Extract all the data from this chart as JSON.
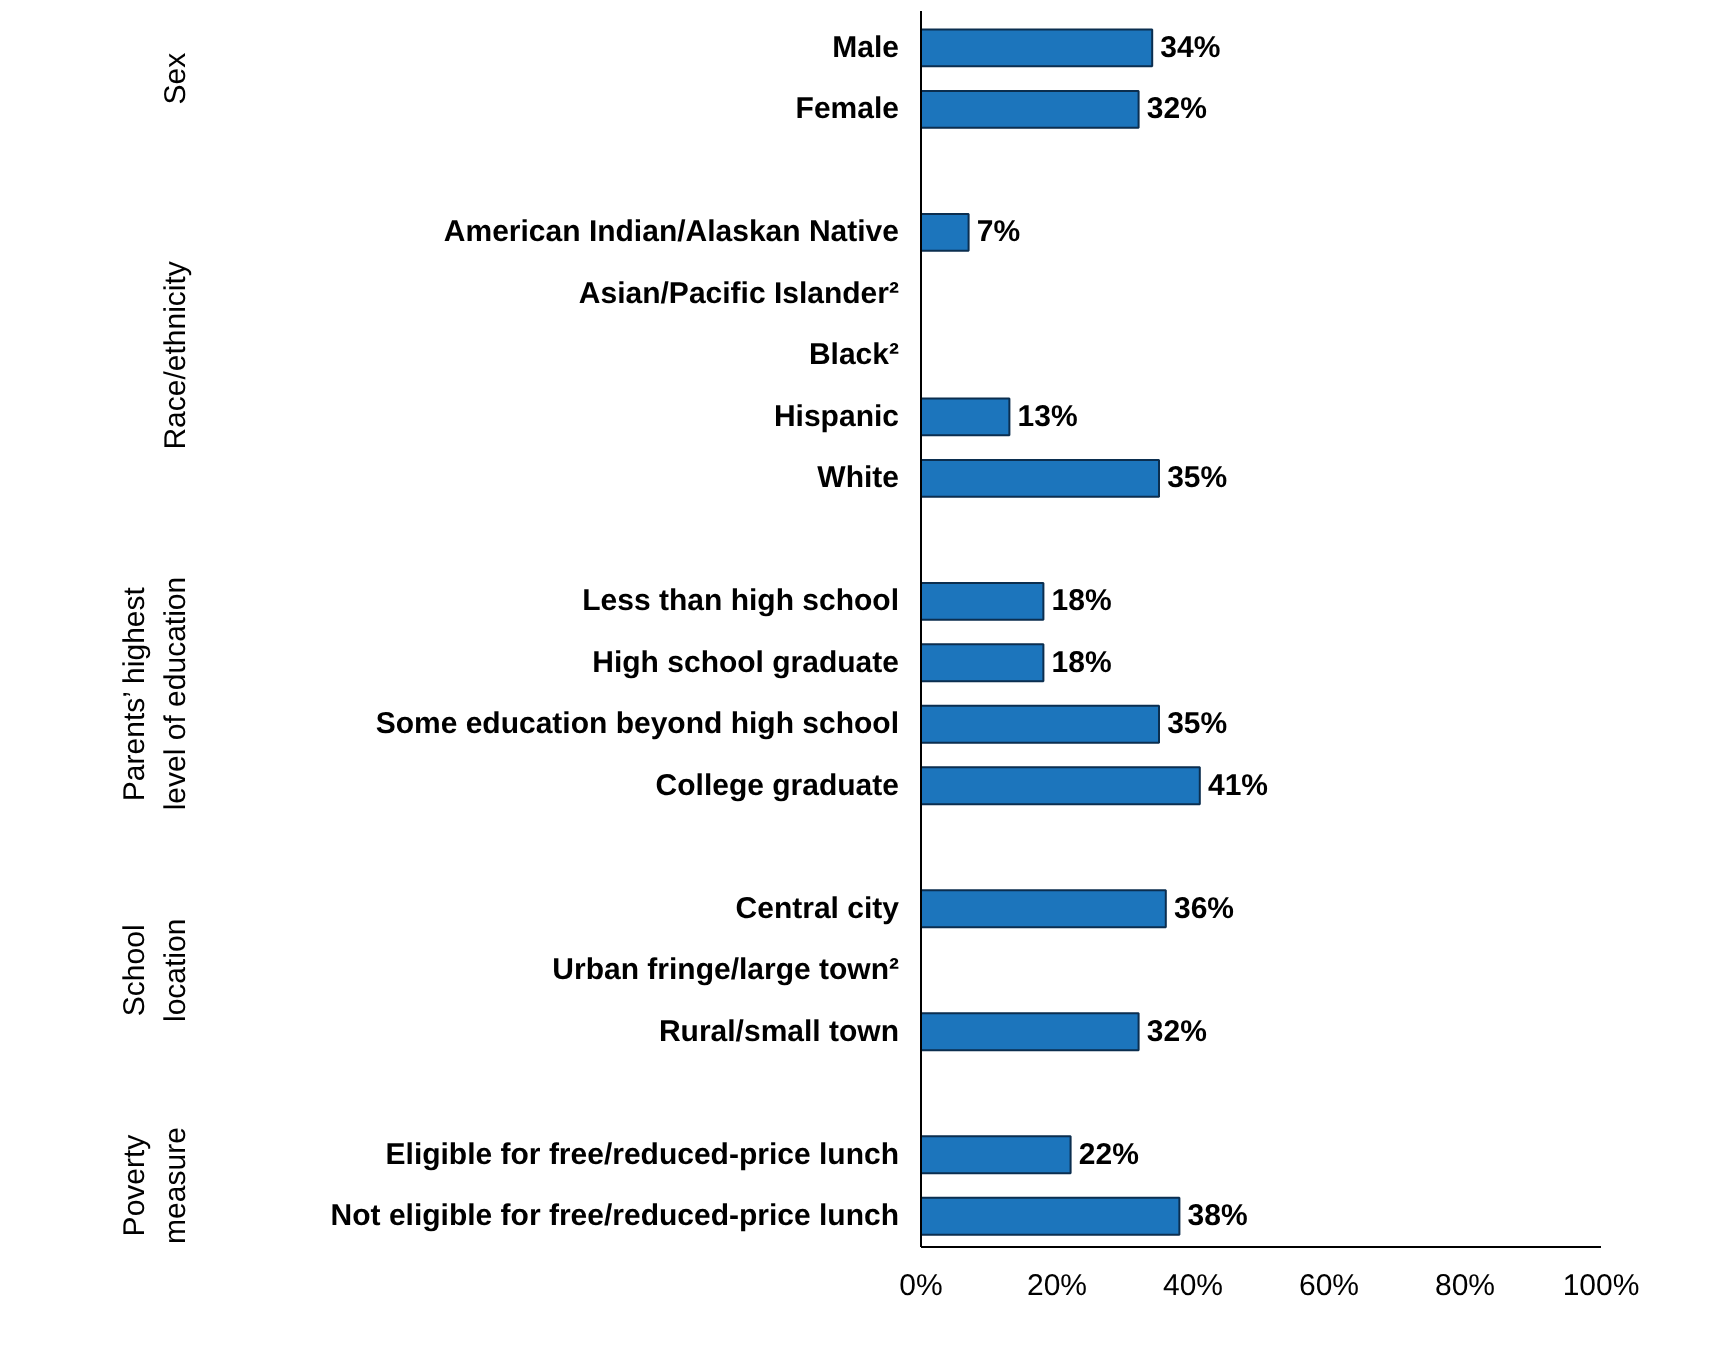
{
  "chart_data": {
    "type": "bar",
    "orientation": "horizontal",
    "categories": [
      "Male",
      "Female",
      null,
      "American Indian/Alaskan Native",
      "Asian/Pacific Islander²",
      "Black²",
      "Hispanic",
      "White",
      null,
      "Less than high school",
      "High school graduate",
      "Some education beyond high school",
      "College graduate",
      null,
      "Central city",
      "Urban fringe/large town²",
      "Rural/small town",
      null,
      "Eligible for free/reduced-price lunch",
      "Not eligible for free/reduced-price lunch"
    ],
    "values": [
      34,
      32,
      null,
      7,
      null,
      null,
      13,
      35,
      null,
      18,
      18,
      35,
      41,
      null,
      36,
      null,
      32,
      null,
      22,
      38
    ],
    "value_labels": [
      "34%",
      "32%",
      null,
      "7%",
      null,
      null,
      "13%",
      "35%",
      null,
      "18%",
      "18%",
      "35%",
      "41%",
      null,
      "36%",
      null,
      "32%",
      null,
      "22%",
      "38%"
    ],
    "color": "#1c75bc",
    "xlim": [
      0,
      100
    ],
    "xticks": [
      {
        "value": 0,
        "label": "0%"
      },
      {
        "value": 20,
        "label": "20%"
      },
      {
        "value": 40,
        "label": "40%"
      },
      {
        "value": 60,
        "label": "60%"
      },
      {
        "value": 80,
        "label": "80%"
      },
      {
        "value": 100,
        "label": "100%"
      }
    ],
    "annotations": [
      "Sex",
      "Race/ethnicity",
      "Parents’ highest\nlevel of education",
      "School\nlocation",
      "Poverty\nmeasure"
    ],
    "grid": false
  }
}
